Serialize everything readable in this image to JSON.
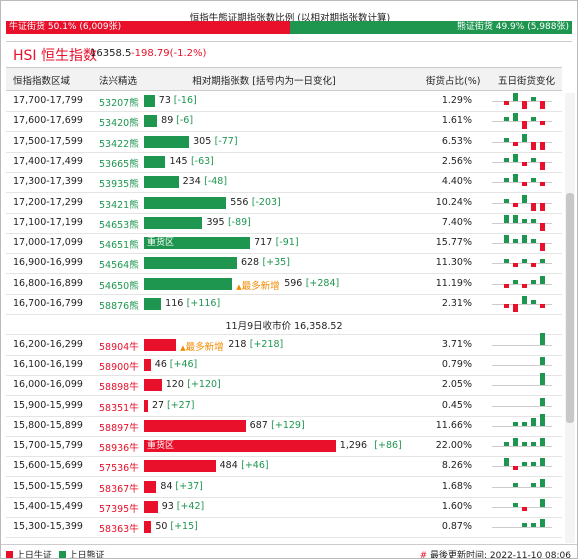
{
  "header": {
    "title": "恒指牛熊证期指张数比例 (以相对期指张数计算)",
    "bull": {
      "name": "牛证街货",
      "pct": "50.1%",
      "count": "(6,009张)"
    },
    "bear": {
      "name": "熊证街货",
      "pct": "49.9%",
      "count": "(5,988张)"
    }
  },
  "index": {
    "name": "HSI 恒生指数",
    "value": "16358.5",
    "change": "-198.79(-1.2%)"
  },
  "columns": [
    "恒指指数区域",
    "法兴精选",
    "相对期指张数 [括号内为一日变化]",
    "街货占比(%)",
    "五日街货变化"
  ],
  "rows": {
    "bear": [
      {
        "range": "17,700-17,799",
        "code": "53207熊",
        "contracts": 73,
        "change": "[-16]",
        "share": "1.29%",
        "spark": [
          -1,
          2,
          -2,
          1,
          -2
        ]
      },
      {
        "range": "17,600-17,699",
        "code": "53420熊",
        "contracts": 89,
        "change": "[-6]",
        "share": "1.61%",
        "spark": [
          1,
          2,
          -2,
          1,
          -1
        ]
      },
      {
        "range": "17,500-17,599",
        "code": "53422熊",
        "contracts": 305,
        "change": "[-77]",
        "share": "6.53%",
        "spark": [
          1,
          -1,
          2,
          -2,
          -2
        ]
      },
      {
        "range": "17,400-17,499",
        "code": "53665熊",
        "contracts": 145,
        "change": "[-63]",
        "share": "2.56%",
        "spark": [
          1,
          2,
          -1,
          1,
          -2
        ]
      },
      {
        "range": "17,300-17,399",
        "code": "53935熊",
        "contracts": 234,
        "change": "[-48]",
        "share": "4.40%",
        "spark": [
          1,
          2,
          -1,
          1,
          -1
        ]
      },
      {
        "range": "17,200-17,299",
        "code": "53421熊",
        "contracts": 556,
        "change": "[-203]",
        "share": "10.24%",
        "spark": [
          1,
          -1,
          2,
          -2,
          -2
        ]
      },
      {
        "range": "17,100-17,199",
        "code": "54653熊",
        "contracts": 395,
        "change": "[-89]",
        "share": "7.40%",
        "spark": [
          2,
          2,
          1,
          1,
          -2
        ]
      },
      {
        "range": "17,000-17,099",
        "code": "54651熊",
        "contracts": 717,
        "change": "[-91]",
        "share": "15.77%",
        "tag": "重货区",
        "spark": [
          2,
          1,
          2,
          1,
          -2
        ]
      },
      {
        "range": "16,900-16,999",
        "code": "54564熊",
        "contracts": 628,
        "change": "[+35]",
        "share": "11.30%",
        "spark": [
          1,
          -1,
          1,
          -1,
          1
        ]
      },
      {
        "range": "16,800-16,899",
        "code": "54650熊",
        "contracts": 596,
        "change": "[+284]",
        "share": "11.19%",
        "hot": "最多新增",
        "spark": [
          -1,
          1,
          -1,
          1,
          2
        ]
      },
      {
        "range": "16,700-16,799",
        "code": "58876熊",
        "contracts": 116,
        "change": "[+116]",
        "share": "2.31%",
        "spark": [
          -1,
          -2,
          2,
          1,
          -1
        ]
      }
    ],
    "close": "11月9日收市价 16,358.52",
    "bull": [
      {
        "range": "16,200-16,299",
        "code": "58904牛",
        "contracts": 218,
        "change": "[+218]",
        "share": "3.71%",
        "hot": "最多新增",
        "spark": [
          0,
          0,
          0,
          0,
          3
        ]
      },
      {
        "range": "16,100-16,199",
        "code": "58900牛",
        "contracts": 46,
        "change": "[+46]",
        "share": "0.79%",
        "spark": [
          0,
          0,
          0,
          0,
          2
        ]
      },
      {
        "range": "16,000-16,099",
        "code": "58898牛",
        "contracts": 120,
        "change": "[+120]",
        "share": "2.05%",
        "spark": [
          0,
          0,
          0,
          0,
          3
        ]
      },
      {
        "range": "15,900-15,999",
        "code": "58351牛",
        "contracts": 27,
        "change": "[+27]",
        "share": "0.45%",
        "spark": [
          0,
          0,
          0,
          0,
          2
        ]
      },
      {
        "range": "15,800-15,899",
        "code": "58897牛",
        "contracts": 687,
        "change": "[+129]",
        "share": "11.66%",
        "spark": [
          0,
          1,
          1,
          2,
          3
        ]
      },
      {
        "range": "15,700-15,799",
        "code": "58936牛",
        "contracts": {
          "value": 1296,
          "label": "1,296"
        },
        "change": "[+86]",
        "share": "22.00%",
        "tag": "重货区",
        "spark": [
          1,
          2,
          1,
          1,
          2
        ]
      },
      {
        "range": "15,600-15,699",
        "code": "57536牛",
        "contracts": 484,
        "change": "[+46]",
        "share": "8.26%",
        "spark": [
          2,
          -1,
          1,
          1,
          2
        ]
      },
      {
        "range": "15,500-15,599",
        "code": "58367牛",
        "contracts": 84,
        "change": "[+37]",
        "share": "1.68%",
        "spark": [
          0,
          1,
          0,
          1,
          2
        ]
      },
      {
        "range": "15,400-15,499",
        "code": "57395牛",
        "contracts": 93,
        "change": "[+42]",
        "share": "1.60%",
        "spark": [
          0,
          1,
          -1,
          0,
          2
        ]
      },
      {
        "range": "15,300-15,399",
        "code": "58363牛",
        "contracts": 50,
        "change": "[+15]",
        "share": "0.87%",
        "spark": [
          0,
          0,
          1,
          1,
          2
        ]
      }
    ]
  },
  "footer": {
    "legend": [
      "上日牛证",
      "上日熊证"
    ],
    "updated": "最後更新时间: 2022-11-10 08:06"
  }
}
